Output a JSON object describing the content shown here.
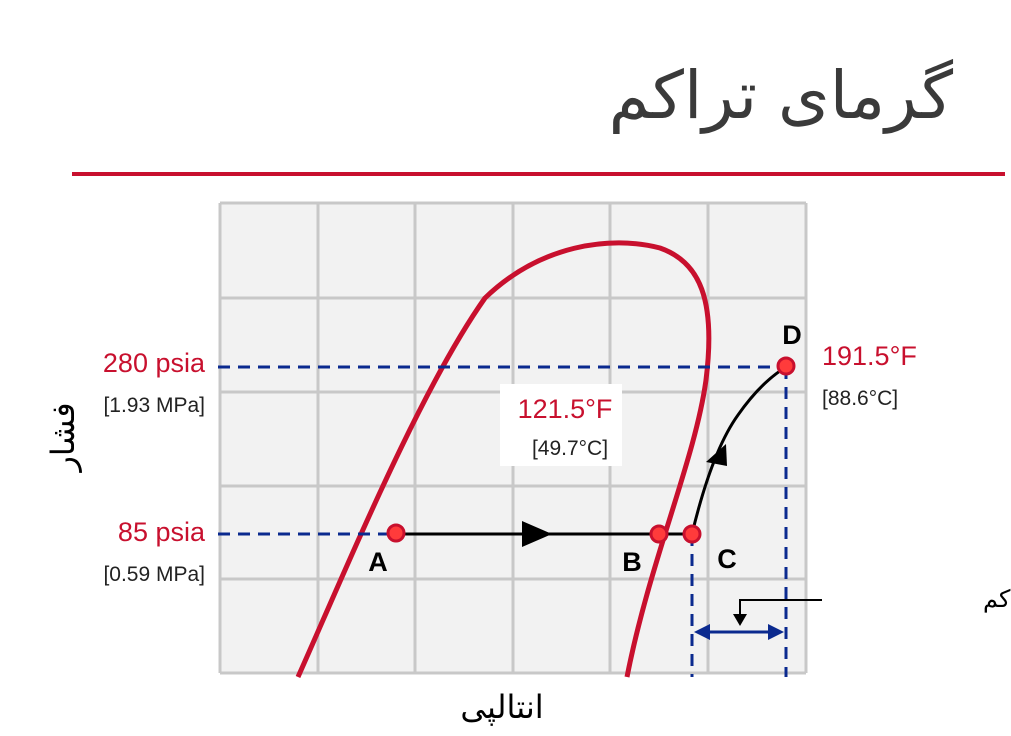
{
  "title": "گرمای تراکم",
  "colors": {
    "accent": "#c8102e",
    "dashed": "#0b2a8f",
    "grid": "#c8c8c8",
    "text": "#222222",
    "title": "#3a3a3a"
  },
  "axes": {
    "y_label": "فشار",
    "x_label": "انتالپی"
  },
  "pressures": [
    {
      "value": "280 psia",
      "metric": "[1.93 MPa]"
    },
    {
      "value": "85 psia",
      "metric": "[0.59 MPa]"
    }
  ],
  "temperatures": [
    {
      "value": "121.5°F",
      "metric": "[49.7°C]"
    },
    {
      "value": "191.5°F",
      "metric": "[88.6°C]"
    }
  ],
  "points": [
    "A",
    "B",
    "C",
    "D"
  ],
  "annotation": "گرمای تراکم"
}
